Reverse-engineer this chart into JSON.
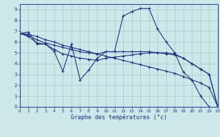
{
  "title": "Graphe des températures (°c)",
  "bg_color": "#cce8e8",
  "grid_color": "#a8cccc",
  "line_color": "#1e3080",
  "xlim": [
    0,
    23
  ],
  "ylim": [
    0,
    9.5
  ],
  "xticks": [
    0,
    1,
    2,
    3,
    4,
    5,
    6,
    7,
    8,
    9,
    10,
    11,
    12,
    13,
    14,
    15,
    16,
    17,
    18,
    19,
    20,
    21,
    22,
    23
  ],
  "yticks": [
    0,
    1,
    2,
    3,
    4,
    5,
    6,
    7,
    8,
    9
  ],
  "series": [
    {
      "x": [
        0,
        1,
        2,
        3,
        4,
        5,
        6,
        7,
        8,
        9,
        10,
        11,
        12,
        13,
        14,
        15,
        16,
        17,
        18,
        19,
        20,
        21,
        22
      ],
      "y": [
        6.8,
        6.9,
        5.8,
        5.8,
        5.1,
        3.3,
        5.8,
        2.5,
        3.4,
        4.5,
        5.1,
        5.1,
        8.4,
        8.8,
        9.1,
        9.1,
        7.2,
        6.0,
        5.0,
        3.2,
        2.5,
        1.0,
        0.0
      ]
    },
    {
      "x": [
        0,
        1,
        2,
        3,
        4,
        5,
        6,
        7,
        8,
        9,
        10,
        11,
        12,
        13,
        14,
        15,
        16,
        17,
        18,
        19,
        20,
        21,
        22,
        23
      ],
      "y": [
        6.8,
        6.7,
        6.5,
        6.2,
        6.0,
        5.7,
        5.5,
        5.3,
        5.1,
        4.9,
        4.7,
        4.5,
        4.3,
        4.1,
        3.9,
        3.7,
        3.5,
        3.3,
        3.1,
        2.8,
        2.5,
        2.2,
        1.8,
        0.0
      ]
    },
    {
      "x": [
        0,
        1,
        2,
        3,
        4,
        5,
        6,
        7,
        8,
        9,
        10,
        11,
        12,
        13,
        14,
        15,
        16,
        17,
        18,
        19,
        20,
        21,
        22,
        23
      ],
      "y": [
        6.8,
        6.6,
        6.2,
        5.9,
        5.7,
        5.5,
        5.3,
        5.1,
        5.0,
        4.9,
        5.1,
        5.1,
        5.1,
        5.1,
        5.1,
        5.1,
        5.0,
        5.0,
        4.9,
        4.5,
        4.0,
        3.5,
        3.0,
        0.0
      ]
    },
    {
      "x": [
        0,
        1,
        2,
        3,
        4,
        5,
        6,
        7,
        8,
        9,
        10,
        11,
        12,
        13,
        14,
        15,
        16,
        17,
        18,
        19,
        20,
        21,
        22,
        23
      ],
      "y": [
        6.8,
        6.5,
        5.9,
        5.8,
        5.3,
        4.9,
        4.7,
        4.5,
        4.4,
        4.3,
        4.5,
        4.6,
        4.7,
        4.8,
        4.9,
        5.0,
        5.0,
        4.9,
        4.8,
        4.5,
        4.0,
        3.5,
        3.0,
        0.0
      ]
    }
  ]
}
